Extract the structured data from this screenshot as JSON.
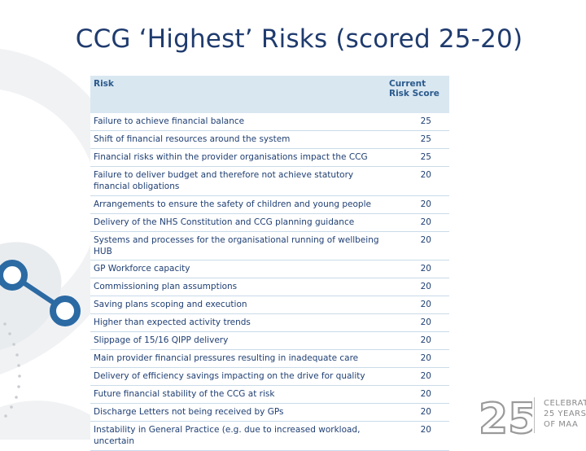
{
  "title": "CCG ‘Highest’ Risks (scored 25-20)",
  "table": {
    "headers": {
      "risk": "Risk",
      "score": "Current Risk Score"
    },
    "rows": [
      {
        "risk": "Failure to achieve financial balance",
        "score": "25"
      },
      {
        "risk": "Shift of financial resources around the system",
        "score": "25"
      },
      {
        "risk": "Financial risks within the provider organisations impact the CCG",
        "score": "25"
      },
      {
        "risk": "Failure to deliver budget and therefore not achieve statutory financial obligations",
        "score": "20"
      },
      {
        "risk": "Arrangements to ensure the safety of children and young people",
        "score": "20"
      },
      {
        "risk": "Delivery of the NHS Constitution and CCG planning guidance",
        "score": "20"
      },
      {
        "risk": "Systems and processes for the organisational running of wellbeing HUB",
        "score": "20"
      },
      {
        "risk": "GP Workforce capacity",
        "score": "20"
      },
      {
        "risk": "Commissioning plan assumptions",
        "score": "20"
      },
      {
        "risk": "Saving plans scoping and execution",
        "score": "20"
      },
      {
        "risk": "Higher than expected activity trends",
        "score": "20"
      },
      {
        "risk": "Slippage of 15/16 QIPP delivery",
        "score": "20"
      },
      {
        "risk": "Main provider financial pressures resulting in inadequate care",
        "score": "20"
      },
      {
        "risk": "Delivery of efficiency savings impacting on the drive for quality",
        "score": "20"
      },
      {
        "risk": "Future financial stability of the CCG at risk",
        "score": "20"
      },
      {
        "risk": "Discharge Letters not being received by GPs",
        "score": "20"
      },
      {
        "risk": "Instability in General Practice (e.g. due to increased workload, uncertain",
        "score": "20"
      }
    ]
  },
  "badge": {
    "number": "25",
    "lines": [
      "CELEBRATING",
      "25 YEARS",
      "OF MAA"
    ]
  },
  "colors": {
    "title": "#1f3b6e",
    "header_bg": "#d9e7f1",
    "accent_blue": "#2b6aa3",
    "swirl_gray": "#eef0f3"
  }
}
